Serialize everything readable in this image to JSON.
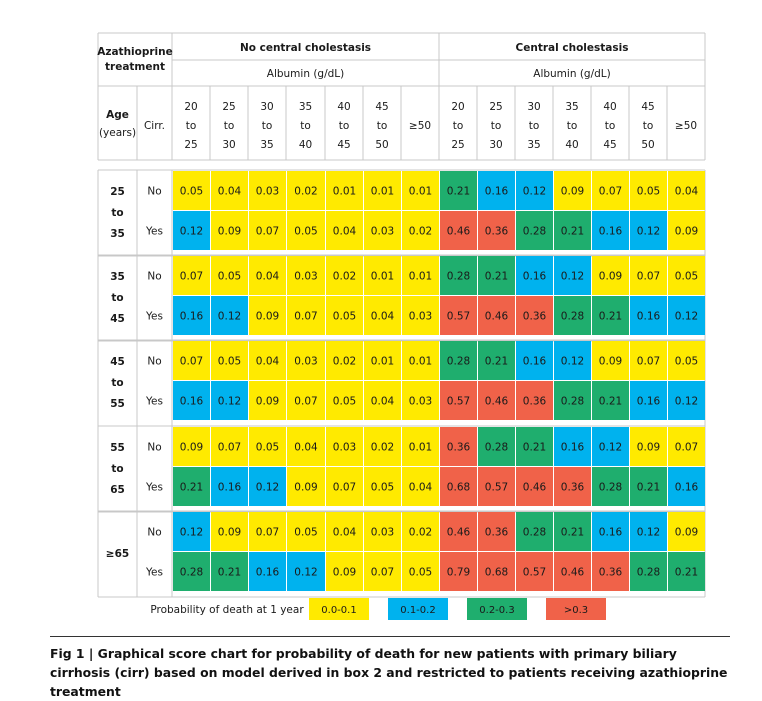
{
  "chart_data": {
    "type": "heatmap",
    "header": {
      "treatment_label": [
        "Azathioprine",
        "treatment"
      ],
      "group_no_cholestasis": "No central cholestasis",
      "group_cholestasis": "Central cholestasis",
      "albumin_label": "Albumin (g/dL)",
      "age_label": [
        "Age",
        "(years)"
      ],
      "cirr_label": "Cirr.",
      "albumin_columns": [
        [
          "20",
          "to",
          "25"
        ],
        [
          "25",
          "to",
          "30"
        ],
        [
          "30",
          "to",
          "35"
        ],
        [
          "35",
          "to",
          "40"
        ],
        [
          "40",
          "to",
          "45"
        ],
        [
          "45",
          "to",
          "50"
        ],
        [
          "≥50"
        ]
      ]
    },
    "age_groups": [
      {
        "label": [
          "25",
          "to",
          "35"
        ],
        "rows": [
          {
            "cirr": "No",
            "values": [
              "0.05",
              "0.04",
              "0.03",
              "0.02",
              "0.01",
              "0.01",
              "0.01",
              "0.21",
              "0.16",
              "0.12",
              "0.09",
              "0.07",
              "0.05",
              "0.04"
            ]
          },
          {
            "cirr": "Yes",
            "values": [
              "0.12",
              "0.09",
              "0.07",
              "0.05",
              "0.04",
              "0.03",
              "0.02",
              "0.46",
              "0.36",
              "0.28",
              "0.21",
              "0.16",
              "0.12",
              "0.09"
            ]
          }
        ]
      },
      {
        "label": [
          "35",
          "to",
          "45"
        ],
        "rows": [
          {
            "cirr": "No",
            "values": [
              "0.07",
              "0.05",
              "0.04",
              "0.03",
              "0.02",
              "0.01",
              "0.01",
              "0.28",
              "0.21",
              "0.16",
              "0.12",
              "0.09",
              "0.07",
              "0.05"
            ]
          },
          {
            "cirr": "Yes",
            "values": [
              "0.16",
              "0.12",
              "0.09",
              "0.07",
              "0.05",
              "0.04",
              "0.03",
              "0.57",
              "0.46",
              "0.36",
              "0.28",
              "0.21",
              "0.16",
              "0.12"
            ]
          }
        ]
      },
      {
        "label": [
          "45",
          "to",
          "55"
        ],
        "rows": [
          {
            "cirr": "No",
            "values": [
              "0.07",
              "0.05",
              "0.04",
              "0.03",
              "0.02",
              "0.01",
              "0.01",
              "0.28",
              "0.21",
              "0.16",
              "0.12",
              "0.09",
              "0.07",
              "0.05"
            ]
          },
          {
            "cirr": "Yes",
            "values": [
              "0.16",
              "0.12",
              "0.09",
              "0.07",
              "0.05",
              "0.04",
              "0.03",
              "0.57",
              "0.46",
              "0.36",
              "0.28",
              "0.21",
              "0.16",
              "0.12"
            ]
          }
        ]
      },
      {
        "label": [
          "55",
          "to",
          "65"
        ],
        "rows": [
          {
            "cirr": "No",
            "values": [
              "0.09",
              "0.07",
              "0.05",
              "0.04",
              "0.03",
              "0.02",
              "0.01",
              "0.36",
              "0.28",
              "0.21",
              "0.16",
              "0.12",
              "0.09",
              "0.07"
            ]
          },
          {
            "cirr": "Yes",
            "values": [
              "0.21",
              "0.16",
              "0.12",
              "0.09",
              "0.07",
              "0.05",
              "0.04",
              "0.68",
              "0.57",
              "0.46",
              "0.36",
              "0.28",
              "0.21",
              "0.16"
            ]
          }
        ]
      },
      {
        "label": [
          "≥65"
        ],
        "rows": [
          {
            "cirr": "No",
            "values": [
              "0.12",
              "0.09",
              "0.07",
              "0.05",
              "0.04",
              "0.03",
              "0.02",
              "0.46",
              "0.36",
              "0.28",
              "0.21",
              "0.16",
              "0.12",
              "0.09"
            ]
          },
          {
            "cirr": "Yes",
            "values": [
              "0.28",
              "0.21",
              "0.16",
              "0.12",
              "0.09",
              "0.07",
              "0.05",
              "0.79",
              "0.68",
              "0.57",
              "0.46",
              "0.36",
              "0.28",
              "0.21"
            ]
          }
        ]
      }
    ],
    "cell_colors": [
      [
        "y",
        "y",
        "y",
        "y",
        "y",
        "y",
        "y",
        "g",
        "b",
        "b",
        "y",
        "y",
        "y",
        "y"
      ],
      [
        "b",
        "y",
        "y",
        "y",
        "y",
        "y",
        "y",
        "r",
        "r",
        "g",
        "g",
        "b",
        "b",
        "y"
      ],
      [
        "y",
        "y",
        "y",
        "y",
        "y",
        "y",
        "y",
        "g",
        "g",
        "b",
        "b",
        "y",
        "y",
        "y"
      ],
      [
        "b",
        "b",
        "y",
        "y",
        "y",
        "y",
        "y",
        "r",
        "r",
        "r",
        "g",
        "g",
        "b",
        "b"
      ],
      [
        "y",
        "y",
        "y",
        "y",
        "y",
        "y",
        "y",
        "g",
        "g",
        "b",
        "b",
        "y",
        "y",
        "y"
      ],
      [
        "b",
        "b",
        "y",
        "y",
        "y",
        "y",
        "y",
        "r",
        "r",
        "r",
        "g",
        "g",
        "b",
        "b"
      ],
      [
        "y",
        "y",
        "y",
        "y",
        "y",
        "y",
        "y",
        "r",
        "g",
        "g",
        "b",
        "b",
        "y",
        "y"
      ],
      [
        "g",
        "b",
        "b",
        "y",
        "y",
        "y",
        "y",
        "r",
        "r",
        "r",
        "r",
        "g",
        "g",
        "b"
      ],
      [
        "b",
        "y",
        "y",
        "y",
        "y",
        "y",
        "y",
        "r",
        "r",
        "g",
        "g",
        "b",
        "b",
        "y"
      ],
      [
        "g",
        "g",
        "b",
        "b",
        "y",
        "y",
        "y",
        "r",
        "r",
        "r",
        "r",
        "r",
        "g",
        "g"
      ]
    ],
    "legend": {
      "title": "Probability of death at 1 year",
      "items": [
        {
          "label": "0.0-0.1",
          "key": "y"
        },
        {
          "label": "0.1-0.2",
          "key": "b"
        },
        {
          "label": "0.2-0.3",
          "key": "g"
        },
        {
          "label": ">0.3",
          "key": "r"
        }
      ]
    },
    "colors": {
      "y": "#ffea00",
      "b": "#00b2ee",
      "g": "#1fae6e",
      "r": "#f06249",
      "line": "#c8c8c8",
      "text": "#1a1a1a"
    }
  },
  "caption": "Fig 1 | Graphical score chart for probability of death for new patients with primary biliary cirrhosis (cirr) based on model derived in box 2 and restricted to patients receiving azathioprine treatment"
}
